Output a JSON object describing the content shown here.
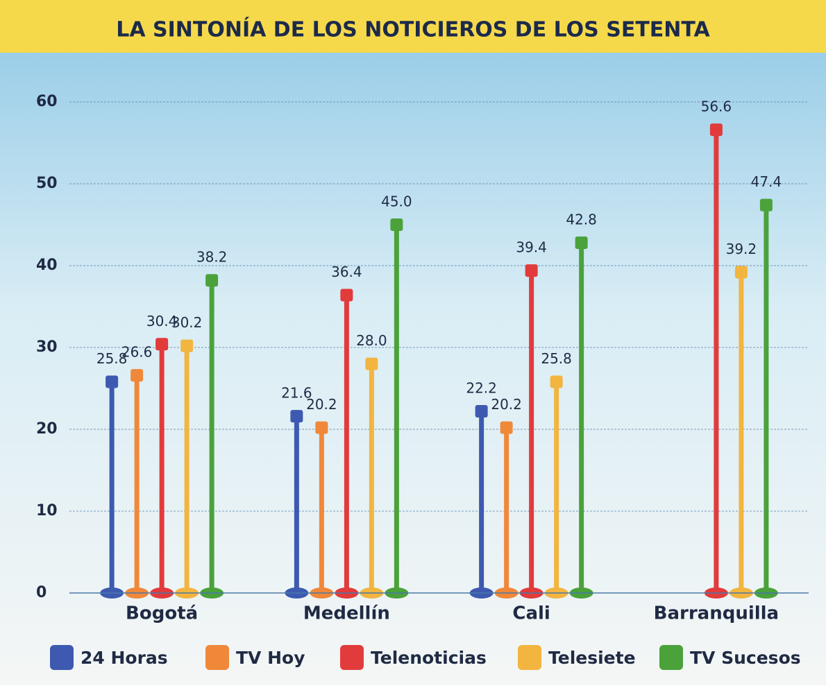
{
  "chart_data": {
    "type": "bar",
    "title": "LA SINTONÍA DE LOS NOTICIEROS DE LOS SETENTA",
    "categories": [
      "Bogotá",
      "Medellín",
      "Cali",
      "Barranquilla"
    ],
    "series": [
      {
        "name": "24 Horas",
        "color": "#3d5ab0",
        "values": [
          25.8,
          21.6,
          22.2,
          null
        ],
        "value_labels": [
          "25.8",
          "21.6",
          "22.2",
          null
        ]
      },
      {
        "name": "TV Hoy",
        "color": "#f0883a",
        "values": [
          26.6,
          20.2,
          20.2,
          null
        ],
        "value_labels": [
          "26.6",
          "20.2",
          "20.2",
          null
        ]
      },
      {
        "name": "Telenoticias",
        "color": "#e23b3b",
        "values": [
          30.4,
          36.4,
          39.4,
          56.6
        ],
        "value_labels": [
          "30.4",
          "36.4",
          "39.4",
          "56.6"
        ]
      },
      {
        "name": "Telesiete",
        "color": "#f2b540",
        "values": [
          30.2,
          28.0,
          25.8,
          39.2
        ],
        "value_labels": [
          "30.2",
          "28.0",
          "25.8",
          "39.2"
        ]
      },
      {
        "name": "TV Sucesos",
        "color": "#4ba23b",
        "values": [
          38.2,
          45.0,
          42.8,
          47.4
        ],
        "value_labels": [
          "38.2",
          "45.0",
          "42.8",
          "47.4"
        ]
      }
    ],
    "ylim": [
      0,
      60
    ],
    "yticks": [
      0,
      10,
      20,
      30,
      40,
      50,
      60
    ],
    "grid": true,
    "legend": "bottom"
  }
}
